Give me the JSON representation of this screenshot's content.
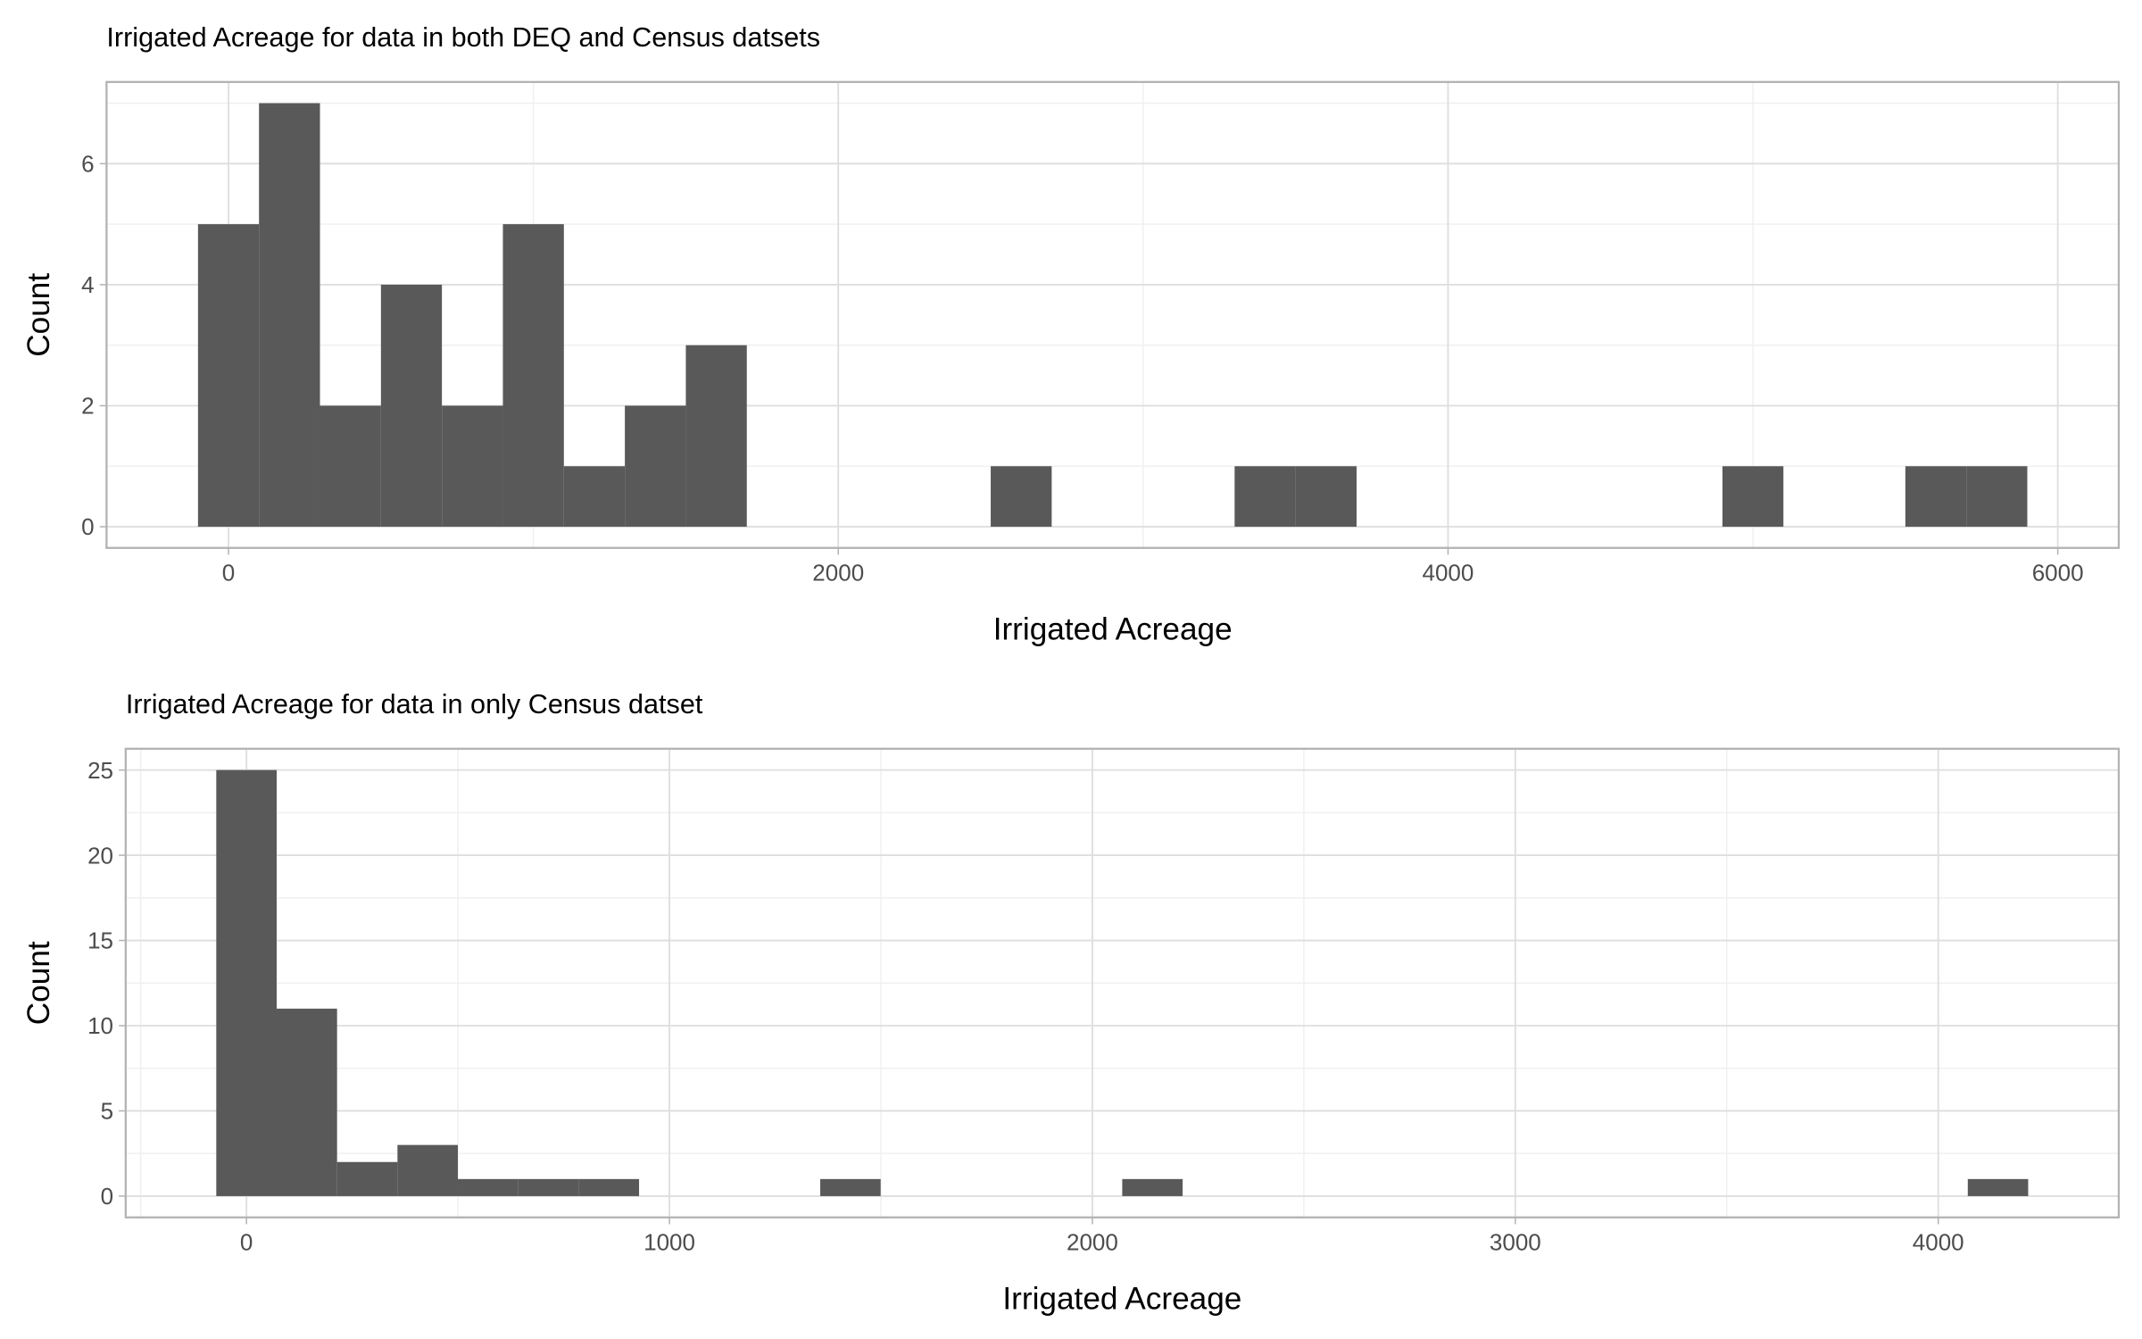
{
  "chart_data": [
    {
      "type": "histogram",
      "title": "Irrigated Acreage for data in both DEQ and Census datsets",
      "x_label": "Irrigated Acreage",
      "y_label": "Count",
      "color": "#595959",
      "bins": [
        -100,
        100,
        300,
        500,
        700,
        900,
        1100,
        1300,
        1500,
        1700,
        1900,
        2100,
        2300,
        2500,
        2700,
        2900,
        3100,
        3300,
        3500,
        3700,
        3900,
        4100,
        4300,
        4500,
        4700,
        4900,
        5100,
        5300,
        5500,
        5700,
        5900
      ],
      "counts": [
        5,
        7,
        2,
        4,
        2,
        5,
        1,
        2,
        3,
        0,
        0,
        0,
        0,
        1,
        0,
        0,
        0,
        1,
        1,
        0,
        0,
        0,
        0,
        0,
        0,
        1,
        0,
        0,
        1,
        1
      ],
      "xlim": [
        -400,
        6200
      ],
      "ylim": [
        -0.35,
        7.35
      ],
      "xticks": [
        0,
        2000,
        4000,
        6000
      ],
      "yticks": [
        0,
        2,
        4,
        6
      ],
      "x_minor_ticks": [
        1000,
        3000,
        5000
      ],
      "y_minor_ticks": [
        1,
        3,
        5,
        7
      ],
      "grid": true
    },
    {
      "type": "histogram",
      "title": "Irrigated Acreage for data in only Census datset",
      "x_label": "Irrigated Acreage",
      "y_label": "Count",
      "color": "#595959",
      "bins": [
        -71.4,
        71.4,
        214.2,
        357,
        499.8,
        642.6,
        785.4,
        928.2,
        1071,
        1213.8,
        1356.6,
        1499.4,
        1642.2,
        1785,
        1927.8,
        2070.6,
        2213.4,
        2356.2,
        2499,
        2641.8,
        2784.6,
        2927.4,
        3070.2,
        3213,
        3355.8,
        3498.6,
        3641.4,
        3784.2,
        3927,
        4069.8,
        4212.6
      ],
      "counts": [
        25,
        11,
        2,
        3,
        1,
        1,
        1,
        0,
        0,
        0,
        1,
        0,
        0,
        0,
        0,
        1,
        0,
        0,
        0,
        0,
        0,
        0,
        0,
        0,
        0,
        0,
        0,
        0,
        0,
        1
      ],
      "xlim": [
        -285.6,
        4426.8
      ],
      "ylim": [
        -1.25,
        26.25
      ],
      "xticks": [
        0,
        1000,
        2000,
        3000,
        4000
      ],
      "yticks": [
        0,
        5,
        10,
        15,
        20,
        25
      ],
      "x_minor_ticks": [
        -250,
        500,
        1500,
        2500,
        3500
      ],
      "y_minor_ticks": [
        2.5,
        7.5,
        12.5,
        17.5,
        22.5
      ],
      "grid": true
    }
  ]
}
